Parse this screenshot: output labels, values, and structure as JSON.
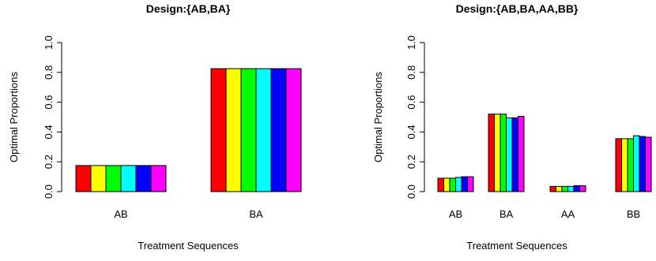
{
  "chart_data": [
    {
      "type": "bar",
      "title": "Design:{AB,BA}",
      "xlabel": "Treatment Sequences",
      "ylabel": "Optimal Proportions",
      "ylim": [
        0,
        1
      ],
      "yticks": [
        "0.0",
        "0.2",
        "0.4",
        "0.6",
        "0.8",
        "1.0"
      ],
      "categories": [
        "AB",
        "BA"
      ],
      "colors": [
        "#FF0000",
        "#FFFF00",
        "#00FF00",
        "#00FFFF",
        "#0000FF",
        "#FF00FF"
      ],
      "values": [
        [
          0.175,
          0.175,
          0.175,
          0.175,
          0.175,
          0.175
        ],
        [
          0.825,
          0.825,
          0.825,
          0.825,
          0.825,
          0.825
        ]
      ],
      "grid": false
    },
    {
      "type": "bar",
      "title": "Design:{AB,BA,AA,BB}",
      "xlabel": "Treatment Sequences",
      "ylabel": "Optimal Proportions",
      "ylim": [
        0,
        1
      ],
      "yticks": [
        "0.0",
        "0.2",
        "0.4",
        "0.6",
        "0.8",
        "1.0"
      ],
      "categories": [
        "AB",
        "BA",
        "AA",
        "BB"
      ],
      "colors": [
        "#FF0000",
        "#FFFF00",
        "#00FF00",
        "#00FFFF",
        "#0000FF",
        "#FF00FF"
      ],
      "values": [
        [
          0.09,
          0.09,
          0.09,
          0.095,
          0.1,
          0.1
        ],
        [
          0.52,
          0.52,
          0.52,
          0.495,
          0.495,
          0.505
        ],
        [
          0.035,
          0.035,
          0.035,
          0.035,
          0.04,
          0.04
        ],
        [
          0.355,
          0.355,
          0.355,
          0.375,
          0.37,
          0.365
        ]
      ],
      "grid": false
    }
  ]
}
